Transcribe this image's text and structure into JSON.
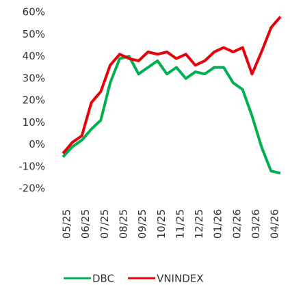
{
  "chart_data": {
    "type": "line",
    "categories": [
      "05/25",
      null,
      "06/25",
      null,
      "07/25",
      null,
      "08/25",
      null,
      "09/25",
      null,
      "10/25",
      null,
      "11/25",
      null,
      "12/25",
      null,
      "01/26",
      null,
      "02/26",
      null,
      "03/26",
      null,
      "04/26",
      null
    ],
    "series": [
      {
        "name": "DBC",
        "color": "#00b050",
        "values": [
          -5.6,
          -1,
          2,
          7,
          11,
          28,
          39,
          40,
          32,
          35,
          38,
          32,
          35,
          30,
          33,
          32,
          35,
          35,
          28,
          25,
          13,
          -1,
          -12,
          -13
        ]
      },
      {
        "name": "VNINDEX",
        "color": "#e8000b",
        "values": [
          -4,
          1,
          4,
          19,
          24,
          36,
          41,
          39,
          38,
          42,
          41,
          42,
          39,
          41,
          36,
          38,
          42,
          44,
          42,
          44,
          32,
          42,
          53,
          58
        ]
      }
    ],
    "ylim": [
      -20,
      60
    ],
    "yticks": [
      {
        "value": -20,
        "label": "-20%"
      },
      {
        "value": -10,
        "label": "-10%"
      },
      {
        "value": 0,
        "label": "0%"
      },
      {
        "value": 10,
        "label": "10%"
      },
      {
        "value": 20,
        "label": "20%"
      },
      {
        "value": 30,
        "label": "30%"
      },
      {
        "value": 40,
        "label": "40%"
      },
      {
        "value": 50,
        "label": "50%"
      },
      {
        "value": 60,
        "label": "60%"
      }
    ],
    "grid": false
  }
}
